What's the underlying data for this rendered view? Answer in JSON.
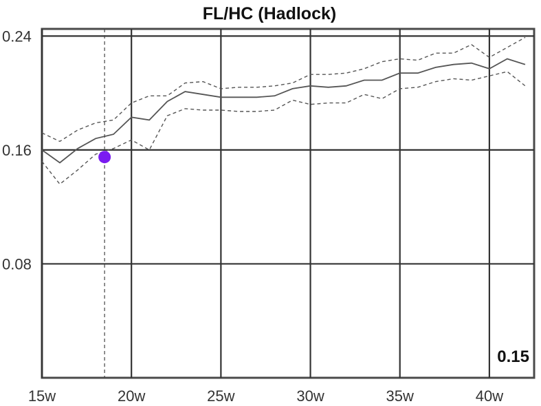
{
  "chart_data": {
    "type": "line",
    "title": "FL/HC (Hadlock)",
    "xlabel": "",
    "ylabel": "",
    "xlim": [
      15,
      42.5
    ],
    "ylim": [
      0,
      0.245
    ],
    "grid": true,
    "x_ticks": [
      15,
      20,
      25,
      30,
      35,
      40
    ],
    "x_tick_labels": [
      "15w",
      "20w",
      "25w",
      "30w",
      "35w",
      "40w"
    ],
    "y_ticks": [
      0.08,
      0.16,
      0.24
    ],
    "y_tick_labels": [
      "0.08",
      "0.16",
      "0.24"
    ],
    "series": [
      {
        "style": "solid",
        "x": [
          15,
          16,
          17,
          18,
          19,
          20,
          21,
          22,
          23,
          24,
          25,
          26,
          27,
          28,
          29,
          30,
          31,
          32,
          33,
          34,
          35,
          36,
          37,
          38,
          39,
          40,
          41,
          42
        ],
        "y": [
          0.16,
          0.151,
          0.161,
          0.168,
          0.171,
          0.183,
          0.181,
          0.194,
          0.201,
          0.199,
          0.197,
          0.197,
          0.197,
          0.198,
          0.203,
          0.205,
          0.204,
          0.205,
          0.209,
          0.209,
          0.214,
          0.214,
          0.218,
          0.22,
          0.221,
          0.217,
          0.224,
          0.22
        ]
      },
      {
        "style": "dashed",
        "x": [
          15,
          16,
          17,
          18,
          19,
          20,
          21,
          22,
          23,
          24,
          25,
          26,
          27,
          28,
          29,
          30,
          31,
          32,
          33,
          34,
          35,
          36,
          37,
          38,
          39,
          40,
          41,
          42
        ],
        "y": [
          0.172,
          0.166,
          0.174,
          0.179,
          0.181,
          0.193,
          0.198,
          0.198,
          0.207,
          0.208,
          0.203,
          0.204,
          0.204,
          0.205,
          0.207,
          0.213,
          0.213,
          0.214,
          0.217,
          0.222,
          0.224,
          0.223,
          0.228,
          0.228,
          0.234,
          0.225,
          0.232,
          0.239
        ]
      },
      {
        "style": "dashed",
        "x": [
          15,
          16,
          17,
          18,
          19,
          20,
          21,
          22,
          23,
          24,
          25,
          26,
          27,
          28,
          29,
          30,
          31,
          32,
          33,
          34,
          35,
          36,
          37,
          38,
          39,
          40,
          41,
          42
        ],
        "y": [
          0.152,
          0.136,
          0.146,
          0.157,
          0.161,
          0.167,
          0.16,
          0.184,
          0.189,
          0.188,
          0.188,
          0.187,
          0.187,
          0.188,
          0.195,
          0.192,
          0.193,
          0.193,
          0.199,
          0.196,
          0.203,
          0.204,
          0.208,
          0.21,
          0.209,
          0.212,
          0.215,
          0.205
        ]
      }
    ],
    "marker": {
      "x": 18.5,
      "y": 0.155,
      "color": "#7a1cf0"
    },
    "marker_line": {
      "x": 18.5
    },
    "value_label": "0.15",
    "colors": {
      "line": "#555555",
      "grid": "#333333",
      "frame": "#4a4a4a",
      "marker": "#7a1cf0"
    }
  }
}
